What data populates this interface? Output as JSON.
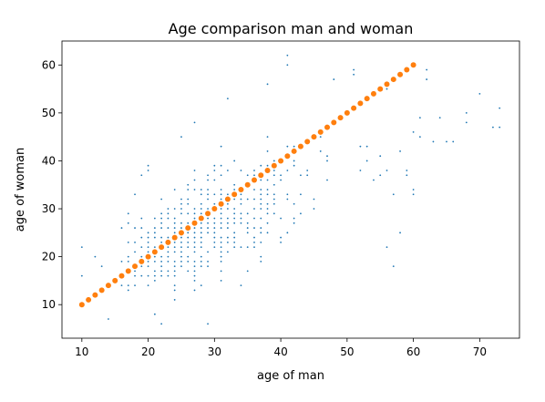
{
  "chart_data": {
    "type": "scatter",
    "title": "Age comparison man and woman",
    "xlabel": "age of man",
    "ylabel": "age of woman",
    "xlim": [
      7,
      76
    ],
    "ylim": [
      3,
      65
    ],
    "xticks": [
      10,
      20,
      30,
      40,
      50,
      60,
      70
    ],
    "yticks": [
      10,
      20,
      30,
      40,
      50,
      60
    ],
    "grid": false,
    "series": [
      {
        "kind": "scatter-small",
        "color": "#1f77b4",
        "cluster": {
          "x_range": [
            16,
            50
          ],
          "y_range": [
            13,
            45
          ],
          "center": [
            27,
            25
          ]
        },
        "outliers": [
          [
            10,
            22
          ],
          [
            12,
            20
          ],
          [
            13,
            18
          ],
          [
            14,
            7
          ],
          [
            10,
            16
          ],
          [
            20,
            39
          ],
          [
            21,
            8
          ],
          [
            22,
            6
          ],
          [
            29,
            6
          ],
          [
            24,
            11
          ],
          [
            25,
            45
          ],
          [
            27,
            48
          ],
          [
            32,
            53
          ],
          [
            38,
            56
          ],
          [
            41,
            62
          ],
          [
            41,
            60
          ],
          [
            47,
            41
          ],
          [
            48,
            57
          ],
          [
            51,
            58
          ],
          [
            51,
            59
          ],
          [
            53,
            40
          ],
          [
            54,
            36
          ],
          [
            55,
            37
          ],
          [
            55,
            41
          ],
          [
            56,
            38
          ],
          [
            56,
            22
          ],
          [
            57,
            33
          ],
          [
            57,
            18
          ],
          [
            58,
            42
          ],
          [
            58,
            25
          ],
          [
            59,
            37
          ],
          [
            59,
            38
          ],
          [
            60,
            33
          ],
          [
            60,
            34
          ],
          [
            60,
            46
          ],
          [
            61,
            45
          ],
          [
            61,
            49
          ],
          [
            62,
            59
          ],
          [
            62,
            57
          ],
          [
            63,
            44
          ],
          [
            64,
            49
          ],
          [
            65,
            44
          ],
          [
            66,
            44
          ],
          [
            68,
            50
          ],
          [
            68,
            48
          ],
          [
            70,
            54
          ],
          [
            72,
            47
          ],
          [
            73,
            51
          ],
          [
            73,
            47
          ],
          [
            52,
            43
          ],
          [
            53,
            43
          ],
          [
            56,
            55
          ],
          [
            52,
            38
          ]
        ]
      },
      {
        "kind": "line-markers",
        "color": "#ff7f0e",
        "x": [
          10,
          60
        ],
        "y": [
          10,
          60
        ],
        "step": 1
      }
    ]
  }
}
